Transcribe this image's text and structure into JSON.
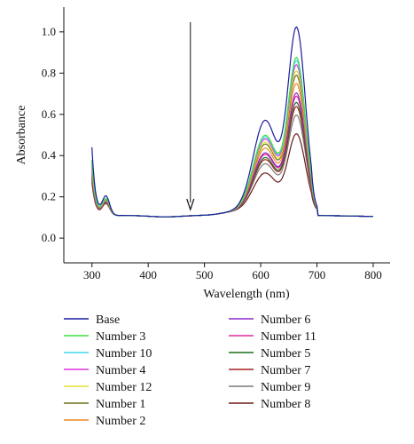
{
  "chart_data": {
    "type": "line",
    "xlabel": "Wavelength (nm)",
    "ylabel": "Absorbance",
    "xlim": [
      250,
      830
    ],
    "ylim": [
      -0.12,
      1.12
    ],
    "xticks": [
      300,
      400,
      500,
      600,
      700,
      800
    ],
    "yticks": [
      0.0,
      0.2,
      0.4,
      0.6,
      0.8,
      1.0
    ],
    "xtick_labels": [
      "300",
      "400",
      "500",
      "600",
      "700",
      "800"
    ],
    "ytick_labels": [
      "0.0",
      "0.2",
      "0.4",
      "0.6",
      "0.8",
      "1.0"
    ],
    "grid": false,
    "legend_position": "bottom",
    "annotation": "downward arrow at 475 nm indicating decreasing absorbance",
    "x": [
      300,
      302,
      305,
      310,
      320,
      330,
      340,
      360,
      380,
      400,
      420,
      450,
      480,
      500,
      520,
      540,
      560,
      580,
      600,
      615,
      630,
      645,
      655,
      663,
      672,
      680,
      690,
      700,
      720,
      760,
      800
    ],
    "series": [
      {
        "name": "Base",
        "color": "#1a1aa0",
        "peak": 1.0,
        "start": 0.44
      },
      {
        "name": "Number 3",
        "color": "#3ee03e",
        "peak": 0.855,
        "start": 0.38
      },
      {
        "name": "Number 10",
        "color": "#3ed8f0",
        "peak": 0.84,
        "start": 0.37
      },
      {
        "name": "Number 4",
        "color": "#e030e0",
        "peak": 0.82,
        "start": 0.36
      },
      {
        "name": "Number 12",
        "color": "#e0e030",
        "peak": 0.79,
        "start": 0.35
      },
      {
        "name": "Number 1",
        "color": "#707018",
        "peak": 0.77,
        "start": 0.34
      },
      {
        "name": "Number 2",
        "color": "#f08a20",
        "peak": 0.73,
        "start": 0.33
      },
      {
        "name": "Number 6",
        "color": "#8a28c8",
        "peak": 0.685,
        "start": 0.32
      },
      {
        "name": "Number 11",
        "color": "#e02898",
        "peak": 0.67,
        "start": 0.31
      },
      {
        "name": "Number 5",
        "color": "#1d6e1d",
        "peak": 0.64,
        "start": 0.3
      },
      {
        "name": "Number 7",
        "color": "#a82020",
        "peak": 0.62,
        "start": 0.29
      },
      {
        "name": "Number 9",
        "color": "#7a7a7a",
        "peak": 0.58,
        "start": 0.28
      },
      {
        "name": "Number 8",
        "color": "#6a1a1a",
        "peak": 0.49,
        "start": 0.27
      }
    ]
  }
}
